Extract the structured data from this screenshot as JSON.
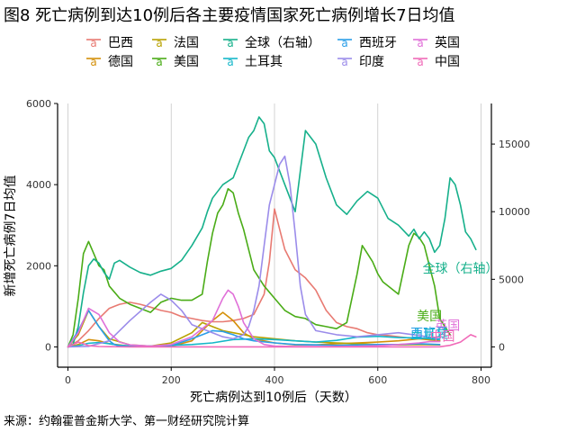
{
  "chart_data": {
    "type": "line",
    "title": "图8 死亡病例到达10例后各主要疫情国家死亡病例增长7日均值",
    "xlabel": "死亡病例达到10例后（天数）",
    "ylabel": "新增死亡病例7日均值",
    "source": "来源：约翰霍普金斯大学、第一财经研究院计算",
    "xlim": [
      -20,
      820
    ],
    "ylim": [
      -500,
      6000
    ],
    "y2lim": [
      -1500,
      18000
    ],
    "xticks": [
      0,
      200,
      400,
      600,
      800
    ],
    "yticks": [
      0,
      2000,
      4000,
      6000
    ],
    "y2ticks": [
      0,
      5000,
      10000,
      15000
    ],
    "grid": true,
    "legend_position": "top",
    "legend_glyph": "a",
    "series": [
      {
        "name": "巴西",
        "axis": "left",
        "color": "#e87a72",
        "x": [
          0,
          20,
          40,
          60,
          80,
          100,
          120,
          140,
          160,
          180,
          200,
          220,
          240,
          260,
          280,
          300,
          320,
          340,
          360,
          380,
          390,
          400,
          410,
          420,
          440,
          460,
          480,
          500,
          520,
          540,
          560,
          580,
          600,
          620,
          640,
          660,
          680,
          700,
          720
        ],
        "y": [
          0,
          150,
          400,
          700,
          950,
          1050,
          1100,
          1050,
          980,
          900,
          850,
          750,
          700,
          650,
          620,
          620,
          650,
          700,
          800,
          1300,
          2100,
          3400,
          2900,
          2400,
          1900,
          1700,
          1400,
          900,
          600,
          500,
          450,
          350,
          300,
          280,
          250,
          220,
          220,
          200,
          150
        ]
      },
      {
        "name": "德国",
        "axis": "left",
        "color": "#d4900a",
        "x": [
          0,
          20,
          40,
          60,
          80,
          120,
          160,
          200,
          240,
          260,
          280,
          300,
          320,
          340,
          360,
          400,
          440,
          480,
          520,
          560,
          600,
          640,
          680,
          720
        ],
        "y": [
          0,
          60,
          180,
          150,
          80,
          20,
          10,
          15,
          150,
          400,
          650,
          850,
          650,
          350,
          200,
          100,
          50,
          50,
          80,
          100,
          120,
          150,
          200,
          150
        ]
      },
      {
        "name": "法国",
        "axis": "left",
        "color": "#b8a100",
        "x": [
          0,
          20,
          40,
          60,
          80,
          120,
          160,
          200,
          240,
          260,
          280,
          300,
          320,
          340,
          360,
          400,
          440,
          480,
          520,
          560,
          600,
          640,
          680,
          720
        ],
        "y": [
          0,
          300,
          900,
          500,
          200,
          50,
          20,
          100,
          350,
          600,
          500,
          400,
          350,
          300,
          250,
          200,
          150,
          120,
          100,
          80,
          60,
          50,
          60,
          50
        ]
      },
      {
        "name": "美国",
        "axis": "left",
        "color": "#4aac17",
        "x": [
          0,
          10,
          20,
          30,
          40,
          50,
          60,
          70,
          80,
          100,
          120,
          140,
          160,
          180,
          200,
          220,
          240,
          260,
          270,
          280,
          290,
          300,
          310,
          320,
          330,
          340,
          350,
          360,
          380,
          400,
          420,
          440,
          460,
          480,
          500,
          520,
          540,
          560,
          570,
          580,
          590,
          600,
          610,
          620,
          640,
          660,
          670,
          680,
          690,
          700,
          710,
          720,
          740
        ],
        "y": [
          0,
          300,
          1200,
          2300,
          2600,
          2300,
          2000,
          1900,
          1500,
          1200,
          1050,
          950,
          850,
          1100,
          1200,
          1150,
          1150,
          1300,
          2100,
          2800,
          3300,
          3500,
          3900,
          3800,
          3300,
          2900,
          2400,
          1900,
          1500,
          1200,
          900,
          750,
          700,
          550,
          500,
          450,
          600,
          1800,
          2500,
          2300,
          2100,
          1800,
          1600,
          1500,
          1300,
          2500,
          2800,
          2700,
          2500,
          2000,
          1500,
          700,
          300
        ]
      },
      {
        "name": "全球（右轴）",
        "axis": "right",
        "color": "#16b08b",
        "x": [
          0,
          10,
          20,
          30,
          40,
          50,
          60,
          70,
          80,
          90,
          100,
          120,
          140,
          160,
          180,
          200,
          220,
          240,
          260,
          270,
          280,
          300,
          320,
          340,
          350,
          360,
          370,
          380,
          390,
          400,
          420,
          440,
          450,
          460,
          470,
          480,
          500,
          520,
          540,
          560,
          580,
          600,
          620,
          640,
          660,
          670,
          680,
          690,
          700,
          710,
          720,
          730,
          740,
          750,
          760,
          770,
          780,
          790
        ],
        "y": [
          0,
          200,
          1500,
          4000,
          6000,
          6500,
          6200,
          5500,
          5000,
          6200,
          6400,
          5900,
          5500,
          5300,
          5600,
          5800,
          6400,
          7500,
          8800,
          10000,
          11000,
          12000,
          12500,
          14500,
          15500,
          16000,
          17000,
          16500,
          14500,
          14000,
          12000,
          10000,
          13000,
          16000,
          15500,
          15000,
          12500,
          10500,
          9800,
          10800,
          11500,
          11000,
          9500,
          9000,
          8200,
          8700,
          8000,
          8500,
          8000,
          7000,
          7500,
          9500,
          12500,
          12000,
          10500,
          8500,
          8000,
          7200
        ]
      },
      {
        "name": "土耳其",
        "axis": "left",
        "color": "#15b7c9",
        "x": [
          0,
          20,
          40,
          60,
          80,
          100,
          120,
          140,
          160,
          200,
          240,
          280,
          320,
          360,
          400,
          440,
          480,
          520,
          560,
          600,
          640,
          680,
          720
        ],
        "y": [
          0,
          30,
          90,
          110,
          80,
          40,
          25,
          20,
          20,
          40,
          60,
          100,
          180,
          200,
          180,
          150,
          120,
          160,
          240,
          260,
          230,
          220,
          180
        ]
      },
      {
        "name": "西班牙",
        "axis": "left",
        "color": "#2a9ee8",
        "x": [
          0,
          20,
          40,
          60,
          80,
          90,
          100,
          120,
          160,
          200,
          240,
          270,
          280,
          300,
          320,
          340,
          360,
          400,
          440,
          480,
          520,
          560,
          600,
          640,
          680,
          720
        ],
        "y": [
          0,
          400,
          900,
          500,
          150,
          60,
          20,
          10,
          10,
          30,
          200,
          350,
          400,
          380,
          300,
          200,
          150,
          100,
          60,
          50,
          40,
          50,
          60,
          60,
          80,
          60
        ]
      },
      {
        "name": "印度",
        "axis": "left",
        "color": "#9b8cea",
        "x": [
          0,
          40,
          80,
          120,
          160,
          180,
          200,
          220,
          240,
          280,
          300,
          320,
          340,
          350,
          360,
          370,
          380,
          390,
          400,
          410,
          420,
          430,
          440,
          450,
          460,
          480,
          520,
          560,
          600,
          640,
          680,
          720
        ],
        "y": [
          0,
          15,
          150,
          650,
          1100,
          1300,
          1150,
          900,
          550,
          350,
          250,
          200,
          300,
          500,
          900,
          1500,
          2500,
          3500,
          4000,
          4500,
          4700,
          4000,
          2800,
          1500,
          800,
          400,
          300,
          250,
          300,
          350,
          280,
          200
        ]
      },
      {
        "name": "英国",
        "axis": "left",
        "color": "#e070d8",
        "x": [
          0,
          20,
          40,
          60,
          80,
          100,
          120,
          160,
          200,
          240,
          280,
          300,
          310,
          320,
          330,
          340,
          360,
          380,
          400,
          440,
          480,
          520,
          560,
          600,
          640,
          680,
          700,
          720
        ],
        "y": [
          0,
          350,
          950,
          800,
          350,
          120,
          50,
          20,
          60,
          250,
          650,
          1200,
          1400,
          1300,
          1000,
          600,
          200,
          60,
          20,
          10,
          10,
          10,
          15,
          30,
          60,
          100,
          130,
          130
        ]
      },
      {
        "name": "中国",
        "axis": "left",
        "color": "#f06ab8",
        "x": [
          0,
          10,
          20,
          30,
          40,
          60,
          80,
          120,
          200,
          300,
          400,
          500,
          600,
          700,
          720,
          740,
          760,
          780,
          790
        ],
        "y": [
          0,
          60,
          120,
          80,
          30,
          10,
          5,
          2,
          1,
          1,
          1,
          1,
          1,
          2,
          3,
          40,
          120,
          300,
          250
        ]
      }
    ],
    "annotations": [
      {
        "text": "全球（右轴）",
        "color": "#16b08b",
        "x": 760,
        "y2": 5500
      },
      {
        "text": "美国",
        "color": "#4aac17",
        "x": 700,
        "y": 650
      },
      {
        "text": "英国",
        "color": "#e070d8",
        "x": 735,
        "y": 420
      },
      {
        "text": "西班牙",
        "color": "#2a9ee8",
        "x": 700,
        "y": 230
      },
      {
        "text": "土耳其",
        "color": "#15b7c9",
        "x": 700,
        "y": 200
      },
      {
        "text": "中国",
        "color": "#f06ab8",
        "x": 725,
        "y": 150
      }
    ]
  }
}
